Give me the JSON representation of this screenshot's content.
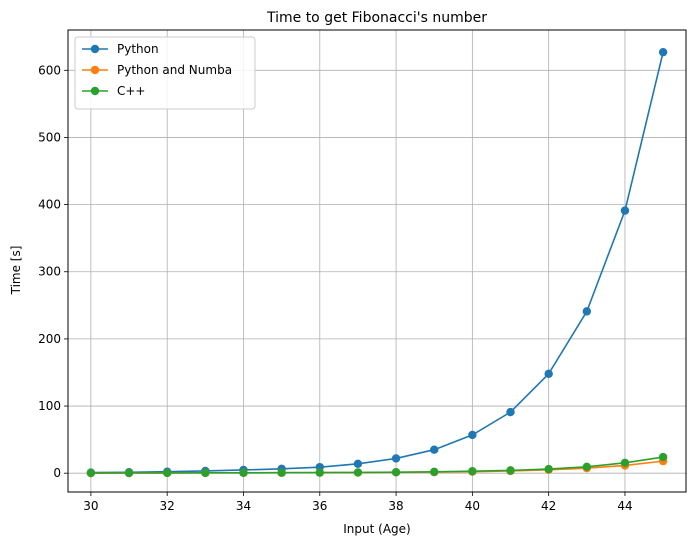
{
  "chart_data": {
    "type": "line",
    "title": "Time to get Fibonacci's number",
    "xlabel": "Input (Age)",
    "ylabel": "Time [s]",
    "xlim": [
      29.4,
      45.6
    ],
    "ylim": [
      -28,
      660
    ],
    "x_ticks": [
      30,
      32,
      34,
      36,
      38,
      40,
      42,
      44
    ],
    "y_ticks": [
      0,
      100,
      200,
      300,
      400,
      500,
      600
    ],
    "grid": true,
    "legend_position": "upper-left",
    "x": [
      30,
      31,
      32,
      33,
      34,
      35,
      36,
      37,
      38,
      39,
      40,
      41,
      42,
      43,
      44,
      45
    ],
    "series": [
      {
        "name": "Python",
        "color": "#1f77b4",
        "values": [
          0.9,
          1.4,
          2.2,
          3.3,
          4.8,
          6.5,
          9.0,
          14.0,
          22.0,
          35.0,
          57.0,
          91.0,
          148.0,
          241.0,
          391.0,
          627.0
        ]
      },
      {
        "name": "Python and Numba",
        "color": "#ff7f0e",
        "values": [
          0.2,
          0.3,
          0.4,
          0.5,
          0.6,
          0.7,
          0.8,
          1.0,
          1.3,
          1.6,
          2.3,
          3.3,
          5.0,
          7.5,
          11.5,
          18.0
        ]
      },
      {
        "name": "C++",
        "color": "#2ca02c",
        "values": [
          0.2,
          0.3,
          0.4,
          0.5,
          0.6,
          0.7,
          0.9,
          1.1,
          1.5,
          2.0,
          3.0,
          4.2,
          6.2,
          9.5,
          15.5,
          24.0
        ]
      }
    ]
  }
}
